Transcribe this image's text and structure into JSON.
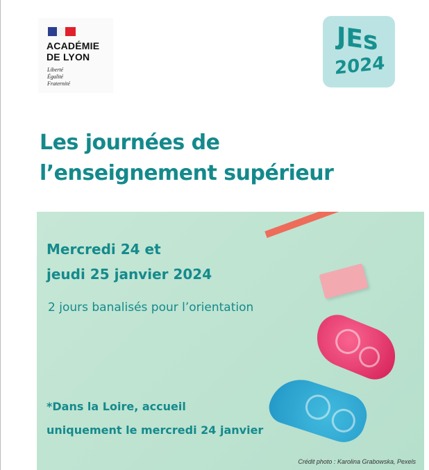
{
  "logo": {
    "line1": "ACADÉMIE",
    "line2": "DE LYON",
    "motto": [
      "Liberté",
      "Égalité",
      "Fraternité"
    ]
  },
  "badge": {
    "line1": "JEs",
    "line2": "2024"
  },
  "title": {
    "line1": "Les journées de",
    "line2": "l’enseignement supérieur"
  },
  "event": {
    "date_line1": "Mercredi 24 et",
    "date_line2": "jeudi 25 janvier 2024",
    "subtitle": "2 jours banalisés pour l’orientation",
    "note_line1": "*Dans la Loire, accueil",
    "note_line2": "uniquement le mercredi 24 janvier",
    "credit": "Crédit photo : Karolina Grabowska, Pexels"
  },
  "colors": {
    "brand_teal": "#148a8c",
    "badge_bg": "#bce3e3",
    "photo_bg": "#c0e4d2"
  }
}
